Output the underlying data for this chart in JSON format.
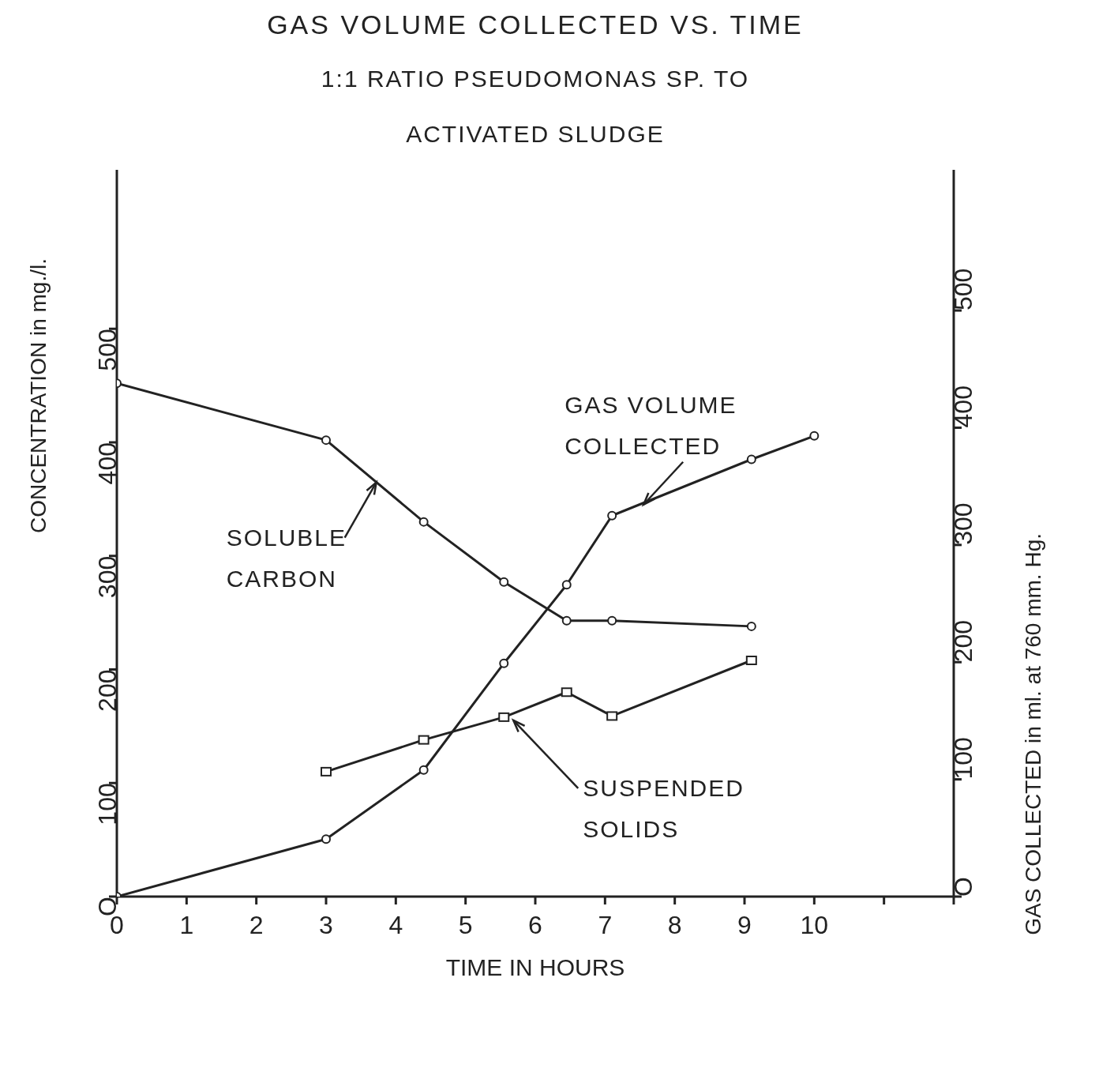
{
  "chart_data": {
    "type": "line",
    "title": "GAS VOLUME COLLECTED VS. TIME",
    "subtitle": "1:1 RATIO PSEUDOMONAS SP. TO ACTIVATED SLUDGE",
    "xlabel": "TIME IN HOURS",
    "ylabel": "CONCENTRATION in mg./l.",
    "y2label": "GAS COLLECTED in ml. at 760 mm. Hg.",
    "xlim": [
      0,
      12
    ],
    "xticks": [
      0,
      1,
      2,
      3,
      4,
      5,
      6,
      7,
      8,
      9,
      10,
      {
        "value": 11,
        "label": null
      },
      {
        "value": 12,
        "label": null
      }
    ],
    "ylim": [
      0,
      640
    ],
    "yticks": [
      {
        "value": 0,
        "label": "O"
      },
      100,
      200,
      300,
      400,
      500
    ],
    "y2lim": [
      0,
      620
    ],
    "y2ticks": [
      {
        "value": 0,
        "label": "O"
      },
      100,
      200,
      300,
      400,
      500
    ],
    "grid": false,
    "legend": false,
    "line_style": "solid",
    "series": [
      {
        "name": "SOLUBLE CARBON",
        "color": "#222222",
        "marker": "circle",
        "x": [
          0,
          3,
          4.4,
          5.55,
          6.45,
          7.1,
          9.1
        ],
        "values": [
          452,
          402,
          330,
          277,
          243,
          243,
          238
        ]
      },
      {
        "name": "GAS VOLUME COLLECTED",
        "color": "#222222",
        "marker": "circle",
        "axis": "y2",
        "x": [
          0,
          3,
          4.4,
          5.55,
          6.45,
          7.1,
          9.1,
          10
        ],
        "values": [
          0,
          49,
          108,
          199,
          266,
          325,
          373,
          393
        ]
      },
      {
        "name": "SUSPENDED SOLIDS",
        "color": "#222222",
        "marker": "square",
        "x": [
          3,
          4.4,
          5.55,
          6.45,
          7.1,
          9.1
        ],
        "values": [
          110,
          138,
          158,
          180,
          159,
          208
        ]
      }
    ]
  }
}
